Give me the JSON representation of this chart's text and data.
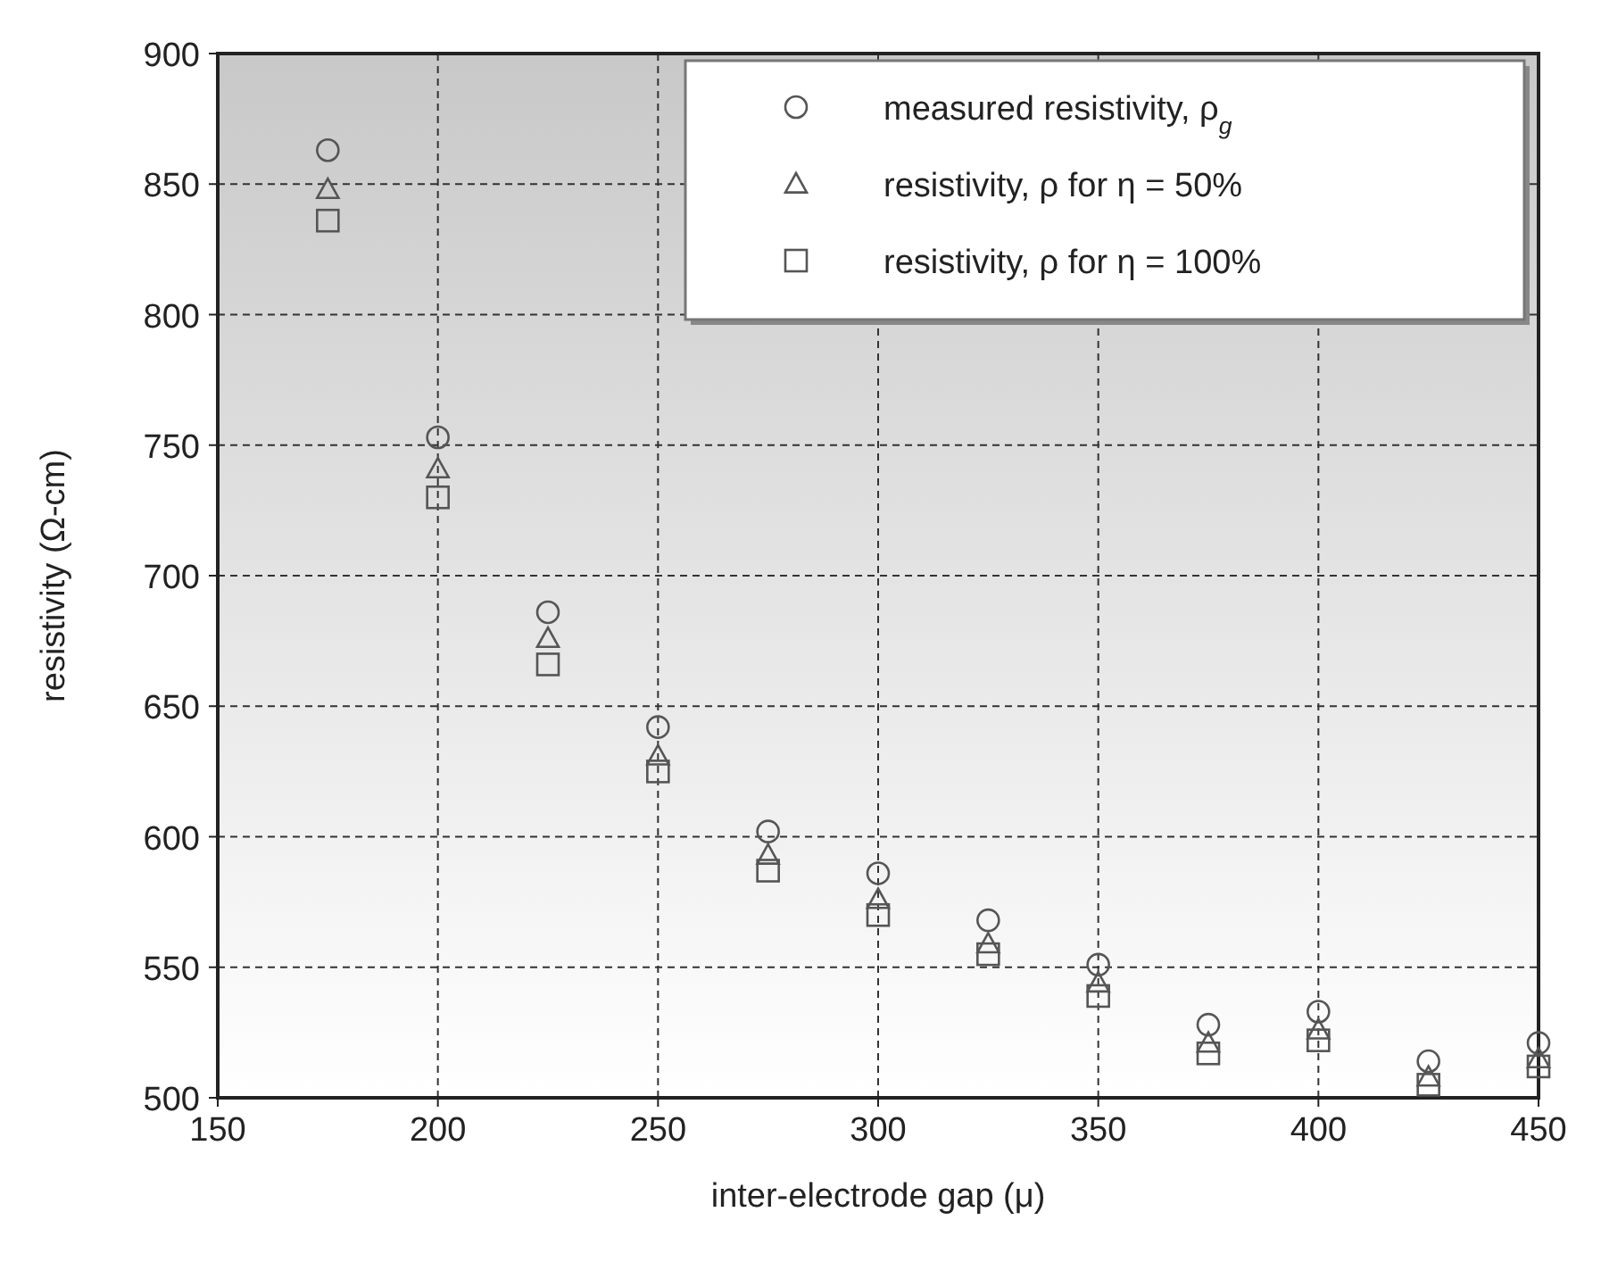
{
  "chart_data": {
    "type": "scatter",
    "xlabel": "inter-electrode gap (μ)",
    "ylabel": "resistivity (Ω-cm)",
    "x": [
      175,
      200,
      225,
      250,
      275,
      300,
      325,
      350,
      375,
      400,
      425,
      450
    ],
    "series": [
      {
        "name": "measured resistivity, ρ$_{g}$",
        "color": "#555555",
        "marker": "circle",
        "values": [
          863,
          753,
          686,
          642,
          602,
          586,
          568,
          551,
          528,
          533,
          514,
          521
        ]
      },
      {
        "name": "resistivity, ρ for η = 50%",
        "color": "#555555",
        "marker": "triangle",
        "values": [
          848,
          741,
          676,
          631,
          593,
          576,
          559,
          544,
          521,
          526,
          508,
          515
        ]
      },
      {
        "name": "resistivity, ρ for η = 100%",
        "color": "#555555",
        "marker": "square",
        "values": [
          836,
          730,
          666,
          625,
          587,
          570,
          555,
          539,
          517,
          522,
          505,
          512
        ]
      }
    ],
    "xlim": [
      150,
      450
    ],
    "xticks": [
      150,
      200,
      250,
      300,
      350,
      400,
      450
    ],
    "ylim": [
      500,
      900
    ],
    "yticks": [
      500,
      550,
      600,
      650,
      700,
      750,
      800,
      850,
      900
    ],
    "grid": true,
    "legend": "top right"
  }
}
